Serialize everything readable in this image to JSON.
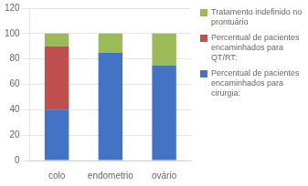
{
  "chart_data": {
    "type": "bar",
    "stacked": true,
    "categories": [
      "colo",
      "endometrio",
      "ovário"
    ],
    "series": [
      {
        "name": "Percentual de pacientes\nencaminhados para\ncirurgia:",
        "color": "#4472c4",
        "values": [
          40,
          85,
          75
        ]
      },
      {
        "name": "Percentual de pacientes\nencaminhados para\nQT/RT:",
        "color": "#c0504d",
        "values": [
          50,
          0,
          0
        ]
      },
      {
        "name": "Tratamento indefinido no\nprontuário",
        "color": "#9bbb59",
        "values": [
          10,
          15,
          25
        ]
      }
    ],
    "ylim": [
      0,
      120
    ],
    "yticks": [
      0,
      20,
      40,
      60,
      80,
      100,
      120
    ],
    "grid": true,
    "legend": "right"
  }
}
